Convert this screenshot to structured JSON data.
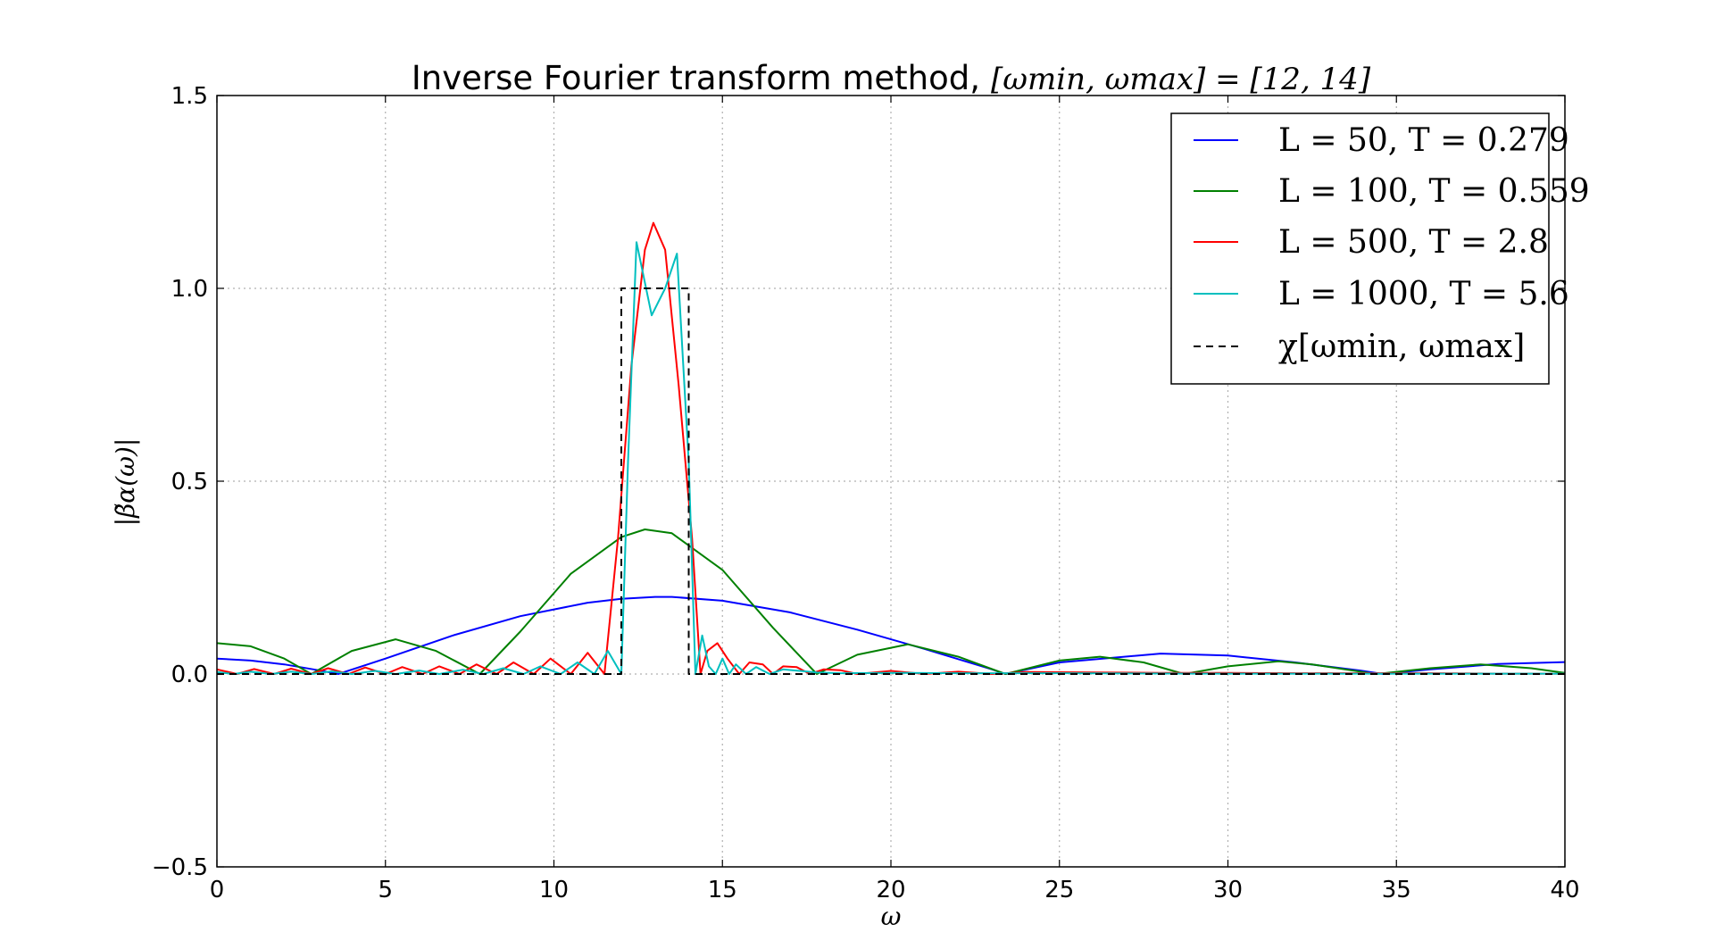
{
  "chart_data": {
    "type": "line",
    "title": "Inverse Fourier transform method, [ωmin, ωmax] = [12, 14]",
    "title_prefix": "Inverse Fourier transform method,",
    "title_math": "[ωmin, ωmax] = [12, 14]",
    "xlabel": "ω",
    "ylabel": "|β̃α(ω)|",
    "xlim": [
      0,
      40
    ],
    "ylim": [
      -0.5,
      1.5
    ],
    "xticks": [
      0,
      5,
      10,
      15,
      20,
      25,
      30,
      35,
      40
    ],
    "xtick_labels": [
      "0",
      "5",
      "10",
      "15",
      "20",
      "25",
      "30",
      "35",
      "40"
    ],
    "yticks": [
      -0.5,
      0.0,
      0.5,
      1.0,
      1.5
    ],
    "ytick_labels": [
      "−0.5",
      "0.0",
      "0.5",
      "1.0",
      "1.5"
    ],
    "grid": true,
    "legend_position": "top-right",
    "series": [
      {
        "name": "L = 50, T = 0.279",
        "color": "#0000ff",
        "style": "solid",
        "x": [
          0,
          1,
          2,
          3,
          3.6,
          5,
          7,
          9,
          11,
          12,
          13,
          13.5,
          15,
          17,
          19,
          21,
          23,
          23.4,
          25,
          28,
          30,
          32,
          34,
          34.6,
          36,
          38,
          40
        ],
        "y": [
          0.04,
          0.035,
          0.025,
          0.01,
          0.0,
          0.04,
          0.1,
          0.15,
          0.185,
          0.195,
          0.2,
          0.2,
          0.19,
          0.16,
          0.115,
          0.065,
          0.012,
          0.0,
          0.03,
          0.053,
          0.048,
          0.03,
          0.008,
          0.0,
          0.012,
          0.026,
          0.031
        ]
      },
      {
        "name": "L = 100, T = 0.559",
        "color": "#008000",
        "style": "solid",
        "x": [
          0,
          1,
          2,
          2.8,
          4,
          5.3,
          6.5,
          7.8,
          9,
          10.5,
          12,
          12.7,
          13.5,
          15,
          16.5,
          17.8,
          19,
          20.5,
          22,
          23.4,
          25,
          26.2,
          27.5,
          28.7,
          30,
          31.5,
          32.5,
          34.4,
          36,
          37.5,
          39,
          40
        ],
        "y": [
          0.08,
          0.072,
          0.04,
          0.0,
          0.06,
          0.09,
          0.06,
          0.0,
          0.11,
          0.26,
          0.355,
          0.375,
          0.365,
          0.27,
          0.12,
          0.0,
          0.05,
          0.077,
          0.045,
          0.0,
          0.035,
          0.045,
          0.03,
          0.0,
          0.02,
          0.033,
          0.025,
          0.0,
          0.015,
          0.025,
          0.015,
          0.003
        ]
      },
      {
        "name": "L = 500, T = 2.8",
        "color": "#ff0000",
        "style": "solid",
        "x": [
          0,
          0.6,
          1.1,
          1.7,
          2.2,
          2.8,
          3.3,
          3.9,
          4.4,
          5.0,
          5.5,
          6.1,
          6.6,
          7.2,
          7.7,
          8.3,
          8.8,
          9.4,
          9.9,
          10.5,
          11.0,
          11.5,
          11.9,
          12.3,
          12.7,
          12.95,
          13.3,
          13.7,
          14.1,
          14.35,
          14.55,
          14.85,
          15.15,
          15.5,
          15.8,
          16.2,
          16.5,
          16.8,
          17.2,
          17.6,
          18.0,
          18.5,
          19,
          20,
          21,
          22,
          23,
          24,
          26,
          28,
          30,
          32,
          34,
          36,
          38,
          40
        ],
        "y": [
          0.012,
          0.0,
          0.013,
          0.0,
          0.014,
          0.0,
          0.015,
          0.0,
          0.017,
          0.0,
          0.018,
          0.0,
          0.02,
          0.0,
          0.025,
          0.0,
          0.03,
          0.0,
          0.04,
          0.0,
          0.055,
          0.0,
          0.35,
          0.8,
          1.1,
          1.17,
          1.1,
          0.75,
          0.35,
          0.0,
          0.06,
          0.08,
          0.04,
          0.0,
          0.03,
          0.025,
          0.0,
          0.02,
          0.018,
          0.0,
          0.012,
          0.01,
          0.0,
          0.008,
          0.0,
          0.006,
          0.0,
          0.005,
          0.004,
          0.003,
          0.003,
          0.002,
          0.002,
          0.002,
          0.001,
          0.001
        ]
      },
      {
        "name": "L = 1000, T = 5.6",
        "color": "#00bfbf",
        "style": "solid",
        "x": [
          0,
          0.5,
          1.0,
          1.6,
          2.2,
          2.8,
          3.4,
          4.0,
          4.7,
          5.3,
          6.0,
          6.6,
          7.3,
          7.9,
          8.5,
          9.1,
          9.6,
          10.2,
          10.7,
          11.2,
          11.6,
          12.0,
          12.2,
          12.45,
          12.9,
          13.3,
          13.65,
          14.0,
          14.2,
          14.4,
          14.6,
          14.8,
          15.0,
          15.2,
          15.4,
          15.7,
          16.0,
          16.4,
          16.8,
          17.3,
          17.8,
          18.5,
          20,
          22,
          25,
          30,
          35,
          40
        ],
        "y": [
          0.005,
          0.0,
          0.006,
          0.0,
          0.006,
          0.0,
          0.007,
          0.0,
          0.008,
          0.0,
          0.009,
          0.0,
          0.011,
          0.0,
          0.015,
          0.0,
          0.02,
          0.0,
          0.03,
          0.0,
          0.06,
          0.0,
          0.55,
          1.12,
          0.93,
          1.0,
          1.09,
          0.55,
          0.0,
          0.1,
          0.02,
          0.0,
          0.04,
          0.0,
          0.025,
          0.0,
          0.018,
          0.0,
          0.012,
          0.008,
          0.004,
          0.002,
          0.003,
          0.002,
          0.002,
          0.001,
          0.001,
          0.001
        ]
      },
      {
        "name": "χ[ωmin, ωmax]",
        "color": "#000000",
        "style": "dashed",
        "x": [
          0,
          12,
          12,
          14,
          14,
          40
        ],
        "y": [
          0,
          0,
          1,
          1,
          0,
          0
        ]
      }
    ]
  }
}
